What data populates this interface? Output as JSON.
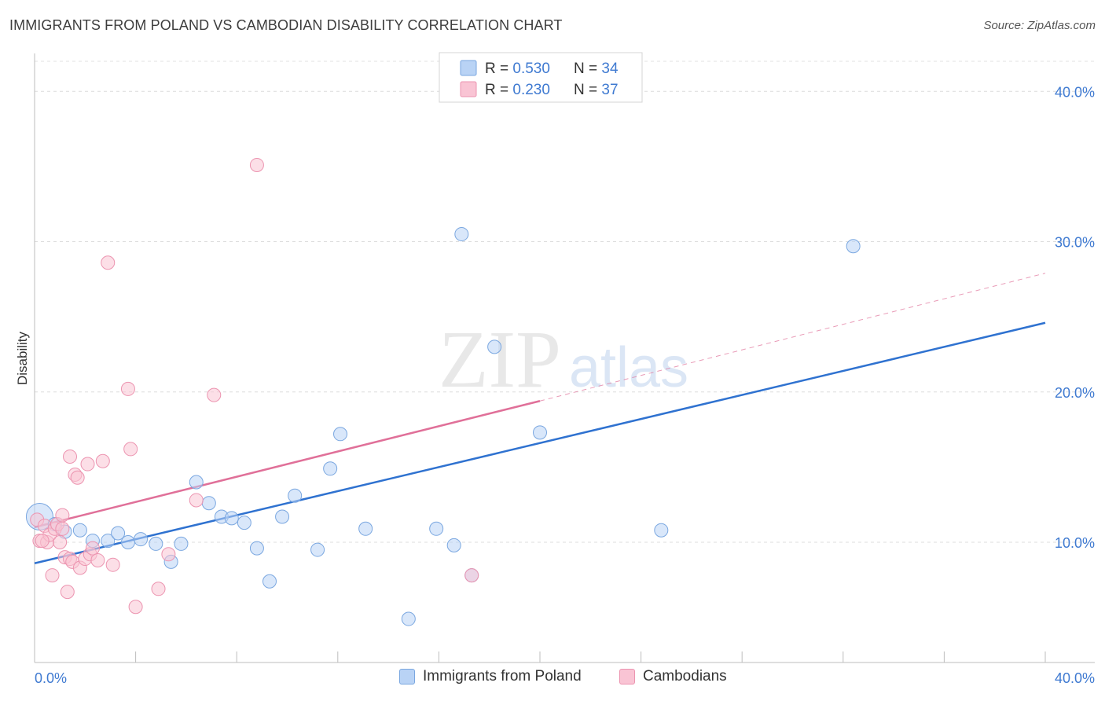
{
  "header": {
    "title": "IMMIGRANTS FROM POLAND VS CAMBODIAN DISABILITY CORRELATION CHART",
    "source": "Source: ZipAtlas.com"
  },
  "watermark": {
    "zip": "ZIP",
    "atlas": "atlas"
  },
  "legend_top": {
    "rows": [
      {
        "r_label": "R = ",
        "r_value": "0.530",
        "n_label": "N = ",
        "n_value": "34"
      },
      {
        "r_label": "R = ",
        "r_value": "0.230",
        "n_label": "N = ",
        "n_value": "37"
      }
    ]
  },
  "legend_bottom": {
    "items": [
      {
        "label": "Immigrants from Poland"
      },
      {
        "label": "Cambodians"
      }
    ]
  },
  "colors": {
    "blue_fill": "#b9d3f5",
    "blue_stroke": "#7aa7e0",
    "blue_line": "#2f72d0",
    "pink_fill": "#f9c4d4",
    "pink_stroke": "#ec94b0",
    "pink_line": "#e07099",
    "axis_label": "#3f7ad1"
  },
  "chart_data": {
    "type": "scatter",
    "title": "IMMIGRANTS FROM POLAND VS CAMBODIAN DISABILITY CORRELATION CHART",
    "xlabel": "",
    "ylabel": "Disability",
    "xlim": [
      0,
      40
    ],
    "ylim": [
      2,
      42
    ],
    "x_tick_labels": [
      "0.0%",
      "40.0%"
    ],
    "y_ticks": [
      10,
      20,
      30,
      40
    ],
    "y_tick_labels": [
      "10.0%",
      "20.0%",
      "30.0%",
      "40.0%"
    ],
    "grid": true,
    "legend_position": "top-center",
    "series": [
      {
        "name": "Immigrants from Poland",
        "color": "#7aa7e0",
        "r": 0.53,
        "n": 34,
        "trend": {
          "x0": 0,
          "y0": 8.6,
          "x1": 40,
          "y1": 24.6
        },
        "points": [
          [
            0.2,
            11.7
          ],
          [
            0.8,
            11.2
          ],
          [
            1.2,
            10.7
          ],
          [
            1.8,
            10.8
          ],
          [
            2.3,
            10.1
          ],
          [
            2.9,
            10.1
          ],
          [
            3.3,
            10.6
          ],
          [
            3.7,
            10.0
          ],
          [
            4.2,
            10.2
          ],
          [
            4.8,
            9.9
          ],
          [
            5.4,
            8.7
          ],
          [
            5.8,
            9.9
          ],
          [
            6.4,
            14.0
          ],
          [
            6.9,
            12.6
          ],
          [
            7.4,
            11.7
          ],
          [
            7.8,
            11.6
          ],
          [
            8.3,
            11.3
          ],
          [
            8.8,
            9.6
          ],
          [
            9.3,
            7.4
          ],
          [
            9.8,
            11.7
          ],
          [
            10.3,
            13.1
          ],
          [
            11.2,
            9.5
          ],
          [
            11.7,
            14.9
          ],
          [
            12.1,
            17.2
          ],
          [
            13.1,
            10.9
          ],
          [
            14.8,
            4.9
          ],
          [
            15.9,
            10.9
          ],
          [
            16.6,
            9.8
          ],
          [
            16.9,
            30.5
          ],
          [
            17.3,
            7.8
          ],
          [
            18.2,
            23.0
          ],
          [
            20.0,
            17.3
          ],
          [
            24.8,
            10.8
          ],
          [
            32.4,
            29.7
          ]
        ]
      },
      {
        "name": "Cambodians",
        "color": "#ec94b0",
        "r": 0.23,
        "n": 37,
        "trend": {
          "x0": 0,
          "y0": 11.0,
          "x1": 20.0,
          "y1": 19.4
        },
        "trend_extension": {
          "x0": 20.0,
          "y0": 19.4,
          "x1": 40,
          "y1": 27.9
        },
        "points": [
          [
            0.1,
            11.5
          ],
          [
            0.2,
            10.1
          ],
          [
            0.4,
            11.1
          ],
          [
            0.5,
            10.0
          ],
          [
            0.6,
            10.5
          ],
          [
            0.7,
            7.8
          ],
          [
            0.8,
            10.9
          ],
          [
            0.9,
            11.2
          ],
          [
            1.0,
            10.0
          ],
          [
            1.1,
            10.9
          ],
          [
            1.2,
            9.0
          ],
          [
            1.1,
            11.8
          ],
          [
            1.3,
            6.7
          ],
          [
            1.4,
            8.9
          ],
          [
            1.4,
            15.7
          ],
          [
            1.5,
            8.7
          ],
          [
            1.6,
            14.5
          ],
          [
            1.7,
            14.3
          ],
          [
            1.8,
            8.3
          ],
          [
            2.0,
            8.9
          ],
          [
            2.1,
            15.2
          ],
          [
            2.2,
            9.2
          ],
          [
            2.3,
            9.6
          ],
          [
            2.5,
            8.8
          ],
          [
            2.7,
            15.4
          ],
          [
            2.9,
            28.6
          ],
          [
            3.1,
            8.5
          ],
          [
            3.7,
            20.2
          ],
          [
            3.8,
            16.2
          ],
          [
            4.0,
            5.7
          ],
          [
            4.9,
            6.9
          ],
          [
            5.3,
            9.2
          ],
          [
            6.4,
            12.8
          ],
          [
            7.1,
            19.8
          ],
          [
            8.8,
            35.1
          ],
          [
            17.3,
            7.8
          ],
          [
            0.3,
            10.1
          ]
        ]
      }
    ]
  }
}
